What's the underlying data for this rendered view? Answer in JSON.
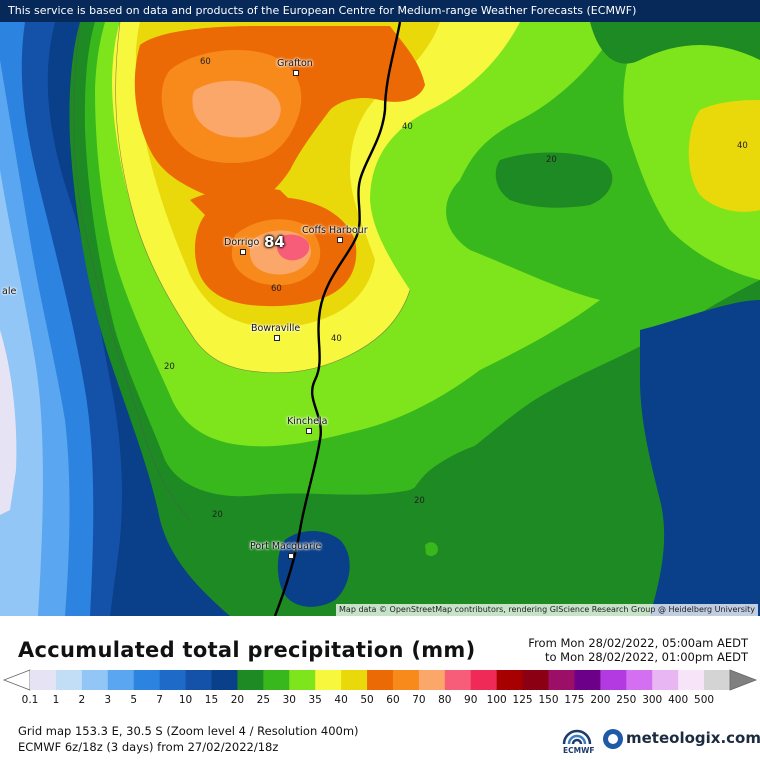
{
  "banner_text": "This service is based on data and products of the European Centre for Medium-range Weather Forecasts (ECMWF)",
  "map_attribution": "Map data © OpenStreetMap contributors, rendering GIScience Research Group @ Heidelberg University",
  "max_value": "84",
  "cities": [
    {
      "name": "Grafton"
    },
    {
      "name": "Coffs Harbour"
    },
    {
      "name": "Dorrigo"
    },
    {
      "name": "Bowraville"
    },
    {
      "name": "Kinchela"
    },
    {
      "name": "Port Macquarie"
    },
    {
      "name": "ale"
    }
  ],
  "contour_labels": [
    "60",
    "40",
    "20",
    "40",
    "60",
    "40",
    "20",
    "20",
    "20"
  ],
  "legend": {
    "title": "Accumulated total precipitation (mm)",
    "period_from": "From Mon 28/02/2022, 05:00am AEDT",
    "period_to": "to Mon 28/02/2022, 01:00pm AEDT",
    "scale": [
      {
        "label": "0.1",
        "color": "#e6e4f4"
      },
      {
        "label": "1",
        "color": "#c2def7"
      },
      {
        "label": "2",
        "color": "#92c6f6"
      },
      {
        "label": "3",
        "color": "#5aa6f0"
      },
      {
        "label": "5",
        "color": "#2d84e0"
      },
      {
        "label": "7",
        "color": "#1e6ac9"
      },
      {
        "label": "10",
        "color": "#1452aa"
      },
      {
        "label": "15",
        "color": "#0a3f8a"
      },
      {
        "label": "20",
        "color": "#1e8a23"
      },
      {
        "label": "25",
        "color": "#38b81c"
      },
      {
        "label": "30",
        "color": "#7ee51c"
      },
      {
        "label": "35",
        "color": "#f7f73d"
      },
      {
        "label": "40",
        "color": "#e9d90b"
      },
      {
        "label": "50",
        "color": "#ec6a05"
      },
      {
        "label": "60",
        "color": "#f88a1c"
      },
      {
        "label": "70",
        "color": "#fba76a"
      },
      {
        "label": "80",
        "color": "#f75d78"
      },
      {
        "label": "90",
        "color": "#ef2a56"
      },
      {
        "label": "100",
        "color": "#a60000"
      },
      {
        "label": "125",
        "color": "#8c0014"
      },
      {
        "label": "150",
        "color": "#9b1066"
      },
      {
        "label": "175",
        "color": "#6d0088"
      },
      {
        "label": "200",
        "color": "#b23ae0"
      },
      {
        "label": "250",
        "color": "#d36ff0"
      },
      {
        "label": "300",
        "color": "#e8b6f3"
      },
      {
        "label": "400",
        "color": "#f7e4f9"
      },
      {
        "label": "500",
        "color": "#d4d4d4"
      }
    ]
  },
  "footer": {
    "grid_info": "Grid map 153.3 E, 30.5 S (Zoom level 4 / Resolution 400m)",
    "model_info": "ECMWF 6z/18z (3 days) from 27/02/2022/18z",
    "ecmwf_label": "ECMWF",
    "brand": "meteologix.com"
  }
}
